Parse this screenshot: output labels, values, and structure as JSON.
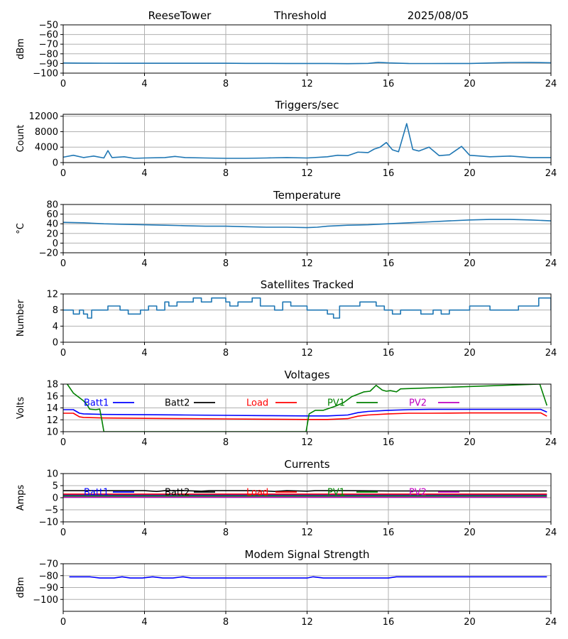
{
  "header": {
    "station": "ReeseTower",
    "mode": "Threshold",
    "date": "2025/08/05"
  },
  "colors": {
    "default": "#1f77b4",
    "grid": "#b0b0b0",
    "batt1": "#0000ff",
    "batt2": "#000000",
    "load": "#ff0000",
    "pv1": "#008000",
    "pv2": "#bf00bf"
  },
  "chart_data": [
    {
      "type": "line",
      "id": "threshold",
      "title": "",
      "ylabel": "dBm",
      "xlim": [
        0,
        24
      ],
      "ylim": [
        -100,
        -50
      ],
      "xticks": [
        0,
        4,
        8,
        12,
        16,
        20,
        24
      ],
      "yticks": [
        -100,
        -90,
        -80,
        -70,
        -60,
        -50
      ],
      "grid": true,
      "series": [
        {
          "color": "#1f77b4",
          "x": [
            0,
            1,
            2,
            3,
            4,
            5,
            6,
            7,
            8,
            9,
            10,
            11,
            12,
            13,
            14,
            15,
            15.5,
            16,
            17,
            18,
            19,
            20,
            21,
            22,
            23,
            24
          ],
          "y": [
            -89.5,
            -89.6,
            -89.7,
            -89.8,
            -89.8,
            -89.8,
            -89.8,
            -89.8,
            -89.8,
            -89.9,
            -89.9,
            -90,
            -90,
            -90,
            -90.2,
            -89.9,
            -88.8,
            -89.4,
            -90,
            -90.1,
            -90,
            -90,
            -89.5,
            -89,
            -88.9,
            -89.3
          ]
        }
      ]
    },
    {
      "type": "line",
      "id": "triggers",
      "title": "Triggers/sec",
      "ylabel": "Count",
      "xlim": [
        0,
        24
      ],
      "ylim": [
        0,
        12500
      ],
      "xticks": [
        0,
        4,
        8,
        12,
        16,
        20,
        24
      ],
      "yticks": [
        0,
        4000,
        8000,
        12000
      ],
      "grid": true,
      "series": [
        {
          "color": "#1f77b4",
          "x": [
            0,
            0.5,
            1,
            1.5,
            2,
            2.2,
            2.4,
            3,
            3.5,
            4,
            5,
            5.5,
            6,
            7,
            8,
            9,
            10,
            11,
            12,
            13,
            13.5,
            14,
            14.5,
            15,
            15.3,
            15.6,
            15.9,
            16.2,
            16.5,
            16.9,
            17.2,
            17.5,
            18,
            18.5,
            19,
            19.6,
            20,
            21,
            22,
            23,
            24
          ],
          "y": [
            1400,
            1900,
            1300,
            1700,
            1200,
            3100,
            1300,
            1500,
            1100,
            1200,
            1300,
            1600,
            1300,
            1200,
            1100,
            1100,
            1200,
            1300,
            1200,
            1500,
            1900,
            1800,
            2700,
            2600,
            3500,
            4000,
            5200,
            3300,
            2800,
            10100,
            3400,
            3000,
            4000,
            1800,
            2000,
            4200,
            1900,
            1500,
            1700,
            1300,
            1300
          ]
        }
      ]
    },
    {
      "type": "line",
      "id": "temperature",
      "title": "Temperature",
      "ylabel": "°C",
      "xlim": [
        0,
        24
      ],
      "ylim": [
        -20,
        80
      ],
      "xticks": [
        0,
        4,
        8,
        12,
        16,
        20,
        24
      ],
      "yticks": [
        -20,
        0,
        20,
        40,
        60,
        80
      ],
      "grid": true,
      "series": [
        {
          "color": "#1f77b4",
          "x": [
            0,
            1,
            2,
            3,
            4,
            5,
            6,
            7,
            8,
            9,
            10,
            11,
            12,
            12.5,
            13,
            14,
            15,
            16,
            17,
            18,
            19,
            20,
            21,
            22,
            23,
            24
          ],
          "y": [
            43,
            42,
            40,
            39,
            38,
            37,
            36,
            35,
            35,
            34,
            33,
            33,
            32,
            33,
            35,
            37,
            38,
            40,
            42,
            44,
            46,
            48,
            49,
            49,
            48,
            46
          ]
        }
      ]
    },
    {
      "type": "line",
      "id": "satellites",
      "title": "Satellites Tracked",
      "ylabel": "Number",
      "xlim": [
        0,
        24
      ],
      "ylim": [
        0,
        12
      ],
      "xticks": [
        0,
        4,
        8,
        12,
        16,
        20,
        24
      ],
      "yticks": [
        0,
        4,
        8,
        12
      ],
      "grid": true,
      "series": [
        {
          "color": "#1f77b4",
          "step": true,
          "x": [
            0,
            0.5,
            0.8,
            1,
            1.2,
            1.4,
            1.6,
            2.2,
            2.8,
            3,
            3.2,
            3.8,
            4.2,
            4.6,
            5,
            5.2,
            5.6,
            6,
            6.4,
            6.8,
            7.3,
            7.8,
            8,
            8.2,
            8.6,
            9,
            9.3,
            9.7,
            10,
            10.4,
            10.8,
            11.2,
            11.6,
            12,
            12.6,
            13,
            13.3,
            13.6,
            14,
            14.6,
            15,
            15.4,
            15.8,
            16.2,
            16.6,
            17,
            17.6,
            18.2,
            18.6,
            19,
            19.6,
            20,
            20.5,
            21,
            21.6,
            22,
            22.4,
            22.8,
            23.4,
            24
          ],
          "y": [
            8,
            7,
            8,
            7,
            6,
            8,
            8,
            9,
            8,
            8,
            7,
            8,
            9,
            8,
            10,
            9,
            10,
            10,
            11,
            10,
            11,
            11,
            10,
            9,
            10,
            10,
            11,
            9,
            9,
            8,
            10,
            9,
            9,
            8,
            8,
            7,
            6,
            9,
            9,
            10,
            10,
            9,
            8,
            7,
            8,
            8,
            7,
            8,
            7,
            8,
            8,
            9,
            9,
            8,
            8,
            8,
            9,
            9,
            11,
            8
          ]
        }
      ]
    },
    {
      "type": "line",
      "id": "voltages",
      "title": "Voltages",
      "ylabel": "Volts",
      "xlim": [
        0,
        24
      ],
      "ylim": [
        10,
        18
      ],
      "xticks": [
        0,
        4,
        8,
        12,
        16,
        20,
        24
      ],
      "yticks": [
        10,
        12,
        14,
        16,
        18
      ],
      "grid": true,
      "legend": [
        "Batt1",
        "Batt2",
        "Load",
        "PV1",
        "PV2"
      ],
      "series": [
        {
          "name": "Batt1",
          "color": "#0000ff",
          "x": [
            0,
            0.5,
            0.8,
            1,
            2,
            4,
            6,
            8,
            10,
            12,
            13,
            14,
            14.5,
            15,
            16,
            17,
            18,
            20,
            22,
            23.5,
            23.8
          ],
          "y": [
            13.7,
            13.7,
            13.1,
            13.0,
            12.9,
            12.85,
            12.8,
            12.75,
            12.7,
            12.65,
            12.65,
            12.8,
            13.2,
            13.4,
            13.6,
            13.7,
            13.75,
            13.75,
            13.75,
            13.75,
            13.3
          ]
        },
        {
          "name": "Batt2",
          "color": "#000000",
          "x": [],
          "y": []
        },
        {
          "name": "Load",
          "color": "#ff0000",
          "x": [
            0,
            0.5,
            0.8,
            1,
            2,
            4,
            6,
            8,
            10,
            12,
            13,
            14,
            14.5,
            15,
            16,
            17,
            18,
            20,
            22,
            23.5,
            23.8
          ],
          "y": [
            13.1,
            13.1,
            12.5,
            12.4,
            12.3,
            12.25,
            12.2,
            12.15,
            12.1,
            12.05,
            12.05,
            12.2,
            12.6,
            12.8,
            13.0,
            13.1,
            13.1,
            13.15,
            13.15,
            13.15,
            12.6
          ]
        },
        {
          "name": "PV1",
          "color": "#008000",
          "x": [
            0.2,
            0.5,
            1,
            1.2,
            1.3,
            1.6,
            1.8,
            1.9,
            2.0,
            11.95,
            12.1,
            12.4,
            12.8,
            13.4,
            13.8,
            14.2,
            14.8,
            15.1,
            15.4,
            15.7,
            15.9,
            16.1,
            16.4,
            16.6,
            23.45,
            23.8
          ],
          "y": [
            18.0,
            16.5,
            15.2,
            14.4,
            13.8,
            13.7,
            13.8,
            12.0,
            10.0,
            10.0,
            13.0,
            13.6,
            13.6,
            14.3,
            14.9,
            15.9,
            16.7,
            16.8,
            17.8,
            17.0,
            16.8,
            16.9,
            16.7,
            17.2,
            18.0,
            14.4
          ]
        },
        {
          "name": "PV2",
          "color": "#bf00bf",
          "x": [],
          "y": []
        }
      ]
    },
    {
      "type": "line",
      "id": "currents",
      "title": "Currents",
      "ylabel": "Amps",
      "xlim": [
        0,
        24
      ],
      "ylim": [
        -10,
        10
      ],
      "xticks": [
        0,
        4,
        8,
        12,
        16,
        20,
        24
      ],
      "yticks": [
        -10,
        -5,
        0,
        5,
        10
      ],
      "grid": true,
      "legend": [
        "Batt1",
        "Batt2",
        "Load",
        "PV1",
        "PV2"
      ],
      "series": [
        {
          "name": "Batt1",
          "color": "#0000ff",
          "x": [
            0,
            23.8
          ],
          "y": [
            1.2,
            1.2
          ]
        },
        {
          "name": "Batt2",
          "color": "#000000",
          "x": [
            0,
            2,
            4,
            4.6,
            5,
            6,
            6.8,
            7.2,
            8,
            9,
            10,
            10.4,
            11,
            12,
            12.4,
            13,
            14,
            16,
            18,
            20,
            22,
            23.8
          ],
          "y": [
            2.9,
            2.9,
            2.9,
            2.6,
            2.9,
            2.9,
            2.7,
            2.9,
            2.9,
            2.9,
            2.8,
            2.6,
            2.9,
            2.7,
            2.9,
            2.9,
            2.9,
            2.8,
            2.8,
            2.8,
            2.8,
            2.8
          ]
        },
        {
          "name": "Load",
          "color": "#ff0000",
          "x": [
            0,
            23.8
          ],
          "y": [
            1.5,
            1.5
          ]
        },
        {
          "name": "PV1",
          "color": "#008000",
          "x": [
            0,
            23.8
          ],
          "y": [
            0.7,
            0.7
          ]
        },
        {
          "name": "PV2",
          "color": "#bf00bf",
          "x": [
            0,
            23.8
          ],
          "y": [
            0.2,
            0.2
          ]
        }
      ]
    },
    {
      "type": "line",
      "id": "modem",
      "title": "Modem Signal Strength",
      "ylabel": "dBm",
      "xlim": [
        0,
        24
      ],
      "ylim": [
        -110,
        -70
      ],
      "xticks": [
        0,
        4,
        8,
        12,
        16,
        20,
        24
      ],
      "yticks": [
        -100,
        -90,
        -80,
        -70
      ],
      "grid": true,
      "series": [
        {
          "color": "#0000ff",
          "x": [
            0.3,
            1.3,
            1.8,
            2.5,
            2.9,
            3.3,
            3.9,
            4.4,
            4.9,
            5.4,
            5.9,
            6.3,
            7,
            8,
            9,
            10,
            11,
            12,
            12.3,
            12.8,
            13,
            14,
            15,
            16,
            16.4,
            17,
            18,
            20,
            22,
            23.8
          ],
          "y": [
            -81,
            -81,
            -82,
            -82,
            -81,
            -82,
            -82,
            -81,
            -82,
            -82,
            -81,
            -82,
            -82,
            -82,
            -82,
            -82,
            -82,
            -82,
            -81,
            -82,
            -82,
            -82,
            -82,
            -82,
            -81,
            -81,
            -81,
            -81,
            -81,
            -81
          ]
        }
      ]
    }
  ]
}
